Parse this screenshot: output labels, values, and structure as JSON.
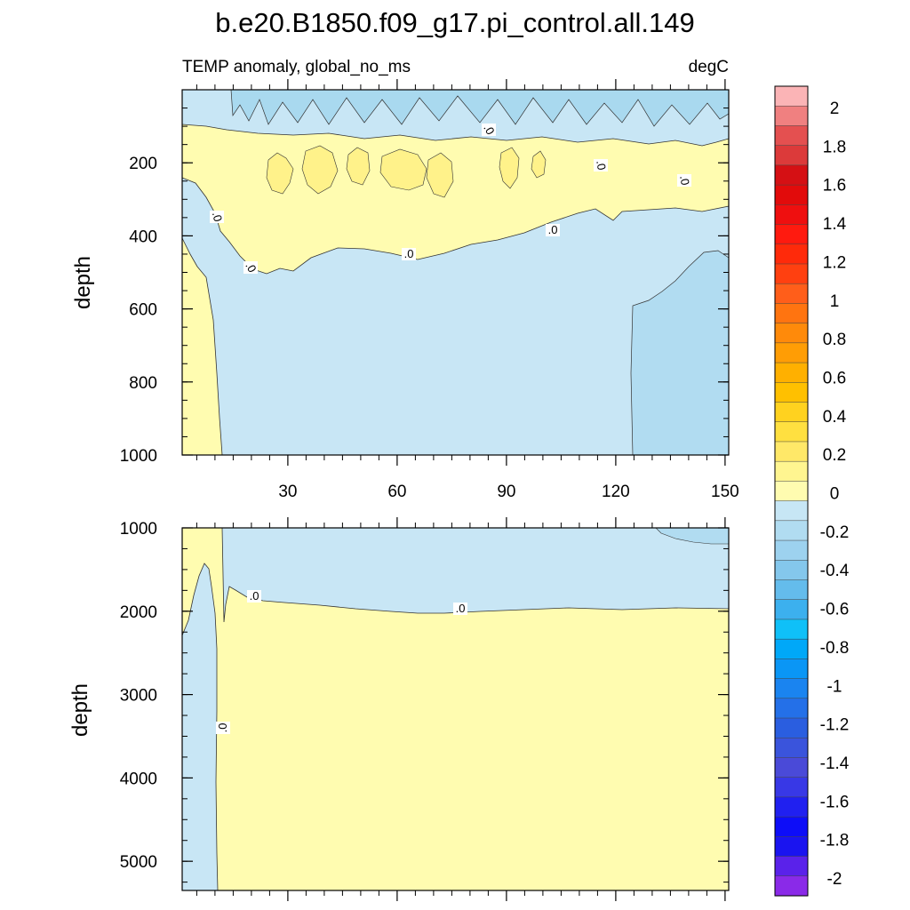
{
  "title": "b.e20.B1850.f09_g17.pi_control.all.149",
  "subtitle_left": "TEMP anomaly, global_no_ms",
  "subtitle_right": "degC",
  "chart_data": {
    "type": "heatmap",
    "variable": "TEMP anomaly",
    "region": "global_no_ms",
    "units": "degC",
    "x_ticks": [
      "30",
      "60",
      "90",
      "120",
      "150"
    ],
    "x_tick_values": [
      30,
      60,
      90,
      120,
      150
    ],
    "xlim": [
      1,
      151
    ],
    "panels": [
      {
        "ylabel": "depth",
        "ylim": [
          0,
          1000
        ],
        "y_inverted": true,
        "y_ticks": [
          "200",
          "400",
          "600",
          "800",
          "1000"
        ],
        "y_tick_values": [
          200,
          400,
          600,
          800,
          1000
        ],
        "contour_labels": [
          ".0",
          ".0",
          ".0",
          ".0",
          ".0",
          ".0",
          ".0"
        ],
        "regions": [
          {
            "level": "0 to 0.1",
            "description": "warm band ~120-500 m, and column at years 1-12"
          },
          {
            "level": "0.1 to 0.2",
            "description": "patches ~200-300 m, years 20-90"
          },
          {
            "level": "-0.1 to 0",
            "description": "surface layer and deep water below ~500 m"
          },
          {
            "level": "-0.2 to -0.1",
            "description": "near surface patches and deep region years 125-150, 450-1000 m"
          }
        ]
      },
      {
        "ylabel": "depth",
        "ylim": [
          1000,
          5350
        ],
        "y_inverted": true,
        "y_ticks": [
          "1000",
          "2000",
          "3000",
          "4000",
          "5000"
        ],
        "y_tick_values": [
          1000,
          2000,
          3000,
          4000,
          5000
        ],
        "contour_labels": [
          ".0",
          ".0",
          ".0"
        ],
        "regions": [
          {
            "level": "0 to 0.1",
            "description": "below ~2000 m for years 12-151"
          },
          {
            "level": "-0.1 to 0",
            "description": "1000-2000 m layer and column at years 1-12"
          },
          {
            "level": "-0.2 to -0.1",
            "description": "small patch years 130-151 near 1000-1200 m"
          }
        ]
      }
    ],
    "colorbar": {
      "labels": [
        "2",
        "1.8",
        "1.6",
        "1.4",
        "1.2",
        "1",
        "0.8",
        "0.6",
        "0.4",
        "0.2",
        "0",
        "-0.2",
        "-0.4",
        "-0.6",
        "-0.8",
        "-1",
        "-1.2",
        "-1.4",
        "-1.6",
        "-1.8",
        "-2"
      ],
      "colors": [
        "#fbb4b6",
        "#f08080",
        "#e45050",
        "#dc3a3a",
        "#d51014",
        "#e20b0b",
        "#ef0f0f",
        "#ff1a0f",
        "#ff2a0a",
        "#ff4010",
        "#ff5e1a",
        "#ff7410",
        "#ff8a0a",
        "#ff9d05",
        "#ffb000",
        "#ffc000",
        "#ffd21f",
        "#ffe040",
        "#ffe868",
        "#fff590",
        "#fffcb0",
        "#c7e6f5",
        "#b1dcf1",
        "#9dd2ef",
        "#84c7ec",
        "#64bcec",
        "#3cb0ee",
        "#0fc0f8",
        "#00a8f8",
        "#0a96f5",
        "#1a84f0",
        "#2470e8",
        "#2a5ee0",
        "#3a54dc",
        "#4a4ad8",
        "#3838e6",
        "#2020f0",
        "#0d0df8",
        "#1a14f0",
        "#5a22ea",
        "#8a2ae8"
      ]
    }
  }
}
